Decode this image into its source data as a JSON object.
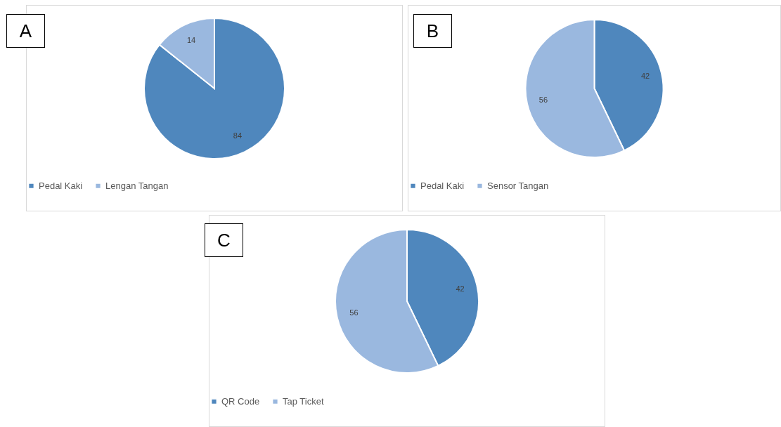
{
  "chart_data": [
    {
      "type": "pie",
      "title": "A",
      "categories": [
        "Pedal Kaki",
        "Lengan Tangan"
      ],
      "values": [
        84,
        14
      ],
      "colors": [
        "#4f87bd",
        "#9ab8df"
      ],
      "data_labels": true,
      "legend": "bottom"
    },
    {
      "type": "pie",
      "title": "B",
      "categories": [
        "Pedal Kaki",
        "Sensor Tangan"
      ],
      "values": [
        42,
        56
      ],
      "colors": [
        "#4f87bd",
        "#9ab8df"
      ],
      "data_labels": true,
      "legend": "bottom"
    },
    {
      "type": "pie",
      "title": "C",
      "categories": [
        "QR Code",
        "Tap Ticket"
      ],
      "values": [
        42,
        56
      ],
      "colors": [
        "#4f87bd",
        "#9ab8df"
      ],
      "data_labels": true,
      "legend": "bottom"
    }
  ]
}
